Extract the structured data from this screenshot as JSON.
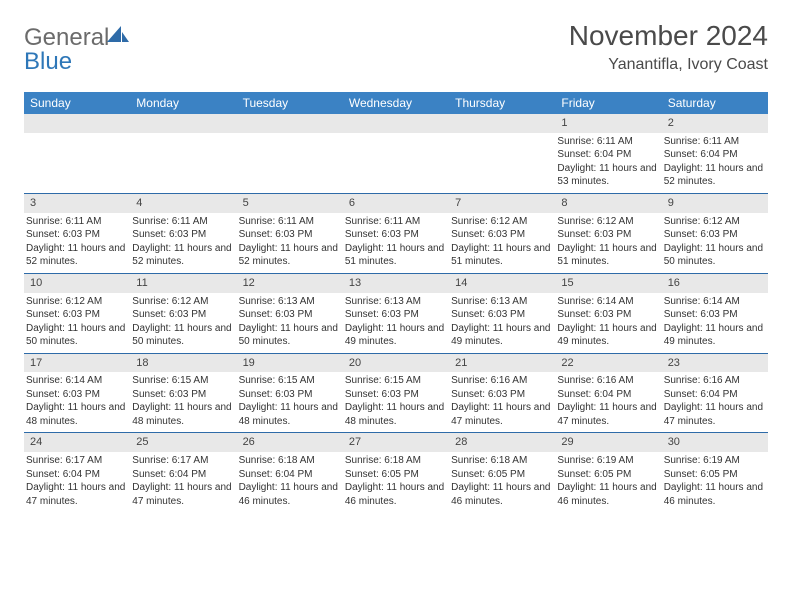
{
  "logo": {
    "text_gray": "General",
    "text_blue": "Blue"
  },
  "title": "November 2024",
  "location": "Yanantifla, Ivory Coast",
  "colors": {
    "header_bg": "#3b82c4",
    "row_border": "#2e6ba8",
    "daynum_bg": "#e8e8e8",
    "text": "#333333"
  },
  "weekdays": [
    "Sunday",
    "Monday",
    "Tuesday",
    "Wednesday",
    "Thursday",
    "Friday",
    "Saturday"
  ],
  "weeks": [
    [
      null,
      null,
      null,
      null,
      null,
      {
        "day": "1",
        "sunrise": "6:11 AM",
        "sunset": "6:04 PM",
        "daylight": "11 hours and 53 minutes."
      },
      {
        "day": "2",
        "sunrise": "6:11 AM",
        "sunset": "6:04 PM",
        "daylight": "11 hours and 52 minutes."
      }
    ],
    [
      {
        "day": "3",
        "sunrise": "6:11 AM",
        "sunset": "6:03 PM",
        "daylight": "11 hours and 52 minutes."
      },
      {
        "day": "4",
        "sunrise": "6:11 AM",
        "sunset": "6:03 PM",
        "daylight": "11 hours and 52 minutes."
      },
      {
        "day": "5",
        "sunrise": "6:11 AM",
        "sunset": "6:03 PM",
        "daylight": "11 hours and 52 minutes."
      },
      {
        "day": "6",
        "sunrise": "6:11 AM",
        "sunset": "6:03 PM",
        "daylight": "11 hours and 51 minutes."
      },
      {
        "day": "7",
        "sunrise": "6:12 AM",
        "sunset": "6:03 PM",
        "daylight": "11 hours and 51 minutes."
      },
      {
        "day": "8",
        "sunrise": "6:12 AM",
        "sunset": "6:03 PM",
        "daylight": "11 hours and 51 minutes."
      },
      {
        "day": "9",
        "sunrise": "6:12 AM",
        "sunset": "6:03 PM",
        "daylight": "11 hours and 50 minutes."
      }
    ],
    [
      {
        "day": "10",
        "sunrise": "6:12 AM",
        "sunset": "6:03 PM",
        "daylight": "11 hours and 50 minutes."
      },
      {
        "day": "11",
        "sunrise": "6:12 AM",
        "sunset": "6:03 PM",
        "daylight": "11 hours and 50 minutes."
      },
      {
        "day": "12",
        "sunrise": "6:13 AM",
        "sunset": "6:03 PM",
        "daylight": "11 hours and 50 minutes."
      },
      {
        "day": "13",
        "sunrise": "6:13 AM",
        "sunset": "6:03 PM",
        "daylight": "11 hours and 49 minutes."
      },
      {
        "day": "14",
        "sunrise": "6:13 AM",
        "sunset": "6:03 PM",
        "daylight": "11 hours and 49 minutes."
      },
      {
        "day": "15",
        "sunrise": "6:14 AM",
        "sunset": "6:03 PM",
        "daylight": "11 hours and 49 minutes."
      },
      {
        "day": "16",
        "sunrise": "6:14 AM",
        "sunset": "6:03 PM",
        "daylight": "11 hours and 49 minutes."
      }
    ],
    [
      {
        "day": "17",
        "sunrise": "6:14 AM",
        "sunset": "6:03 PM",
        "daylight": "11 hours and 48 minutes."
      },
      {
        "day": "18",
        "sunrise": "6:15 AM",
        "sunset": "6:03 PM",
        "daylight": "11 hours and 48 minutes."
      },
      {
        "day": "19",
        "sunrise": "6:15 AM",
        "sunset": "6:03 PM",
        "daylight": "11 hours and 48 minutes."
      },
      {
        "day": "20",
        "sunrise": "6:15 AM",
        "sunset": "6:03 PM",
        "daylight": "11 hours and 48 minutes."
      },
      {
        "day": "21",
        "sunrise": "6:16 AM",
        "sunset": "6:03 PM",
        "daylight": "11 hours and 47 minutes."
      },
      {
        "day": "22",
        "sunrise": "6:16 AM",
        "sunset": "6:04 PM",
        "daylight": "11 hours and 47 minutes."
      },
      {
        "day": "23",
        "sunrise": "6:16 AM",
        "sunset": "6:04 PM",
        "daylight": "11 hours and 47 minutes."
      }
    ],
    [
      {
        "day": "24",
        "sunrise": "6:17 AM",
        "sunset": "6:04 PM",
        "daylight": "11 hours and 47 minutes."
      },
      {
        "day": "25",
        "sunrise": "6:17 AM",
        "sunset": "6:04 PM",
        "daylight": "11 hours and 47 minutes."
      },
      {
        "day": "26",
        "sunrise": "6:18 AM",
        "sunset": "6:04 PM",
        "daylight": "11 hours and 46 minutes."
      },
      {
        "day": "27",
        "sunrise": "6:18 AM",
        "sunset": "6:05 PM",
        "daylight": "11 hours and 46 minutes."
      },
      {
        "day": "28",
        "sunrise": "6:18 AM",
        "sunset": "6:05 PM",
        "daylight": "11 hours and 46 minutes."
      },
      {
        "day": "29",
        "sunrise": "6:19 AM",
        "sunset": "6:05 PM",
        "daylight": "11 hours and 46 minutes."
      },
      {
        "day": "30",
        "sunrise": "6:19 AM",
        "sunset": "6:05 PM",
        "daylight": "11 hours and 46 minutes."
      }
    ]
  ],
  "labels": {
    "sunrise": "Sunrise:",
    "sunset": "Sunset:",
    "daylight": "Daylight:"
  }
}
